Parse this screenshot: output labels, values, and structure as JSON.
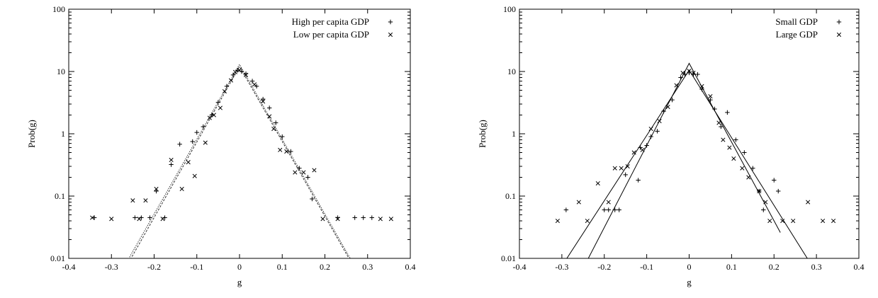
{
  "chart_data": [
    {
      "type": "scatter",
      "xlabel": "g",
      "ylabel": "Prob(g)",
      "xlim": [
        -0.4,
        0.4
      ],
      "ylim": [
        0.01,
        100
      ],
      "yscale": "log",
      "xticks": [
        "-0.4",
        "-0.3",
        "-0.2",
        "-0.1",
        "0",
        "0.1",
        "0.2",
        "0.3",
        "0.4"
      ],
      "yticks": [
        "0.01",
        "0.1",
        "1",
        "10",
        "100"
      ],
      "legend_position": "top-right",
      "series": [
        {
          "name": "High per capita GDP",
          "marker": "plus",
          "points": [
            [
              -0.34,
              0.045
            ],
            [
              -0.245,
              0.045
            ],
            [
              -0.23,
              0.045
            ],
            [
              -0.21,
              0.045
            ],
            [
              -0.195,
              0.12
            ],
            [
              -0.175,
              0.045
            ],
            [
              -0.16,
              0.32
            ],
            [
              -0.14,
              0.68
            ],
            [
              -0.11,
              0.75
            ],
            [
              -0.1,
              1.05
            ],
            [
              -0.085,
              1.3
            ],
            [
              -0.065,
              2.0
            ],
            [
              -0.05,
              3.2
            ],
            [
              -0.03,
              5.8
            ],
            [
              -0.015,
              8.8
            ],
            [
              -0.005,
              10.5
            ],
            [
              0.005,
              10.0
            ],
            [
              0.015,
              9.2
            ],
            [
              0.03,
              7.0
            ],
            [
              0.04,
              5.8
            ],
            [
              0.055,
              3.6
            ],
            [
              0.07,
              2.6
            ],
            [
              0.085,
              1.5
            ],
            [
              0.1,
              0.9
            ],
            [
              0.12,
              0.52
            ],
            [
              0.14,
              0.28
            ],
            [
              0.16,
              0.2
            ],
            [
              0.17,
              0.09
            ],
            [
              0.23,
              0.045
            ],
            [
              0.27,
              0.045
            ],
            [
              0.29,
              0.045
            ],
            [
              0.31,
              0.045
            ]
          ]
        },
        {
          "name": "Low per capita GDP",
          "marker": "cross",
          "points": [
            [
              -0.345,
              0.045
            ],
            [
              -0.3,
              0.043
            ],
            [
              -0.25,
              0.085
            ],
            [
              -0.235,
              0.043
            ],
            [
              -0.22,
              0.085
            ],
            [
              -0.195,
              0.13
            ],
            [
              -0.18,
              0.043
            ],
            [
              -0.16,
              0.38
            ],
            [
              -0.135,
              0.13
            ],
            [
              -0.12,
              0.35
            ],
            [
              -0.105,
              0.21
            ],
            [
              -0.08,
              0.72
            ],
            [
              -0.07,
              1.8
            ],
            [
              -0.06,
              2.0
            ],
            [
              -0.045,
              2.6
            ],
            [
              -0.035,
              4.8
            ],
            [
              -0.02,
              7.2
            ],
            [
              -0.01,
              9.8
            ],
            [
              0.0,
              10.5
            ],
            [
              0.015,
              8.8
            ],
            [
              0.035,
              6.2
            ],
            [
              0.055,
              3.3
            ],
            [
              0.07,
              1.9
            ],
            [
              0.08,
              1.2
            ],
            [
              0.095,
              0.55
            ],
            [
              0.11,
              0.52
            ],
            [
              0.13,
              0.24
            ],
            [
              0.15,
              0.24
            ],
            [
              0.175,
              0.26
            ],
            [
              0.195,
              0.043
            ],
            [
              0.23,
              0.043
            ],
            [
              0.33,
              0.043
            ],
            [
              0.355,
              0.043
            ]
          ]
        }
      ],
      "fit_lines": [
        {
          "style": "dotted",
          "points": [
            [
              -0.265,
              0.0085
            ],
            [
              0.0,
              13.0
            ],
            [
              0.265,
              0.0085
            ]
          ]
        },
        {
          "style": "dashed",
          "points": [
            [
              -0.26,
              0.0085
            ],
            [
              0.0,
              12.0
            ],
            [
              0.262,
              0.0085
            ]
          ]
        }
      ]
    },
    {
      "type": "scatter",
      "xlabel": "g",
      "ylabel": "Prob(g)",
      "xlim": [
        -0.4,
        0.4
      ],
      "ylim": [
        0.01,
        100
      ],
      "yscale": "log",
      "xticks": [
        "-0.4",
        "-0.3",
        "-0.2",
        "-0.1",
        "0",
        "0.1",
        "0.2",
        "0.3",
        "0.4"
      ],
      "yticks": [
        "0.01",
        "0.1",
        "1",
        "10",
        "100"
      ],
      "legend_position": "top-right",
      "series": [
        {
          "name": "Small GDP",
          "marker": "plus",
          "points": [
            [
              -0.29,
              0.06
            ],
            [
              -0.2,
              0.06
            ],
            [
              -0.19,
              0.06
            ],
            [
              -0.175,
              0.06
            ],
            [
              -0.165,
              0.06
            ],
            [
              -0.15,
              0.22
            ],
            [
              -0.12,
              0.18
            ],
            [
              -0.115,
              0.6
            ],
            [
              -0.1,
              0.65
            ],
            [
              -0.09,
              0.9
            ],
            [
              -0.075,
              1.1
            ],
            [
              -0.06,
              2.3
            ],
            [
              -0.04,
              3.5
            ],
            [
              -0.02,
              8.0
            ],
            [
              -0.01,
              9.0
            ],
            [
              0.0,
              9.5
            ],
            [
              0.01,
              9.0
            ],
            [
              0.02,
              9.0
            ],
            [
              0.03,
              5.2
            ],
            [
              0.05,
              3.5
            ],
            [
              0.06,
              2.5
            ],
            [
              0.075,
              1.3
            ],
            [
              0.09,
              2.2
            ],
            [
              0.11,
              0.8
            ],
            [
              0.13,
              0.5
            ],
            [
              0.15,
              0.28
            ],
            [
              0.165,
              0.12
            ],
            [
              0.175,
              0.06
            ],
            [
              0.2,
              0.18
            ],
            [
              0.21,
              0.12
            ]
          ]
        },
        {
          "name": "Large GDP",
          "marker": "cross",
          "points": [
            [
              -0.31,
              0.04
            ],
            [
              -0.26,
              0.08
            ],
            [
              -0.24,
              0.04
            ],
            [
              -0.215,
              0.16
            ],
            [
              -0.19,
              0.08
            ],
            [
              -0.175,
              0.28
            ],
            [
              -0.16,
              0.28
            ],
            [
              -0.145,
              0.3
            ],
            [
              -0.13,
              0.5
            ],
            [
              -0.11,
              0.55
            ],
            [
              -0.09,
              1.2
            ],
            [
              -0.07,
              1.6
            ],
            [
              -0.05,
              2.7
            ],
            [
              -0.03,
              6.0
            ],
            [
              -0.015,
              9.5
            ],
            [
              0.0,
              10.2
            ],
            [
              0.01,
              9.5
            ],
            [
              0.03,
              5.8
            ],
            [
              0.05,
              4.0
            ],
            [
              0.07,
              1.5
            ],
            [
              0.08,
              0.8
            ],
            [
              0.095,
              0.6
            ],
            [
              0.105,
              0.4
            ],
            [
              0.125,
              0.28
            ],
            [
              0.14,
              0.2
            ],
            [
              0.165,
              0.12
            ],
            [
              0.18,
              0.08
            ],
            [
              0.19,
              0.04
            ],
            [
              0.22,
              0.04
            ],
            [
              0.245,
              0.04
            ],
            [
              0.28,
              0.08
            ],
            [
              0.315,
              0.04
            ],
            [
              0.34,
              0.04
            ]
          ]
        }
      ],
      "fit_lines": [
        {
          "style": "solid",
          "points": [
            [
              -0.295,
              0.0085
            ],
            [
              0.0,
              10.5
            ],
            [
              0.285,
              0.0085
            ]
          ]
        },
        {
          "style": "solid",
          "points": [
            [
              -0.243,
              0.0085
            ],
            [
              0.0,
              13.5
            ],
            [
              0.215,
              0.026
            ]
          ]
        }
      ]
    }
  ]
}
